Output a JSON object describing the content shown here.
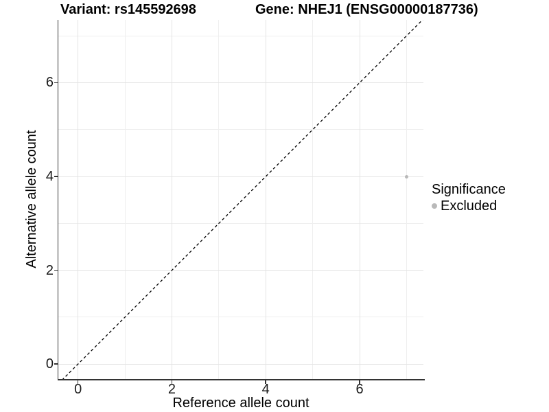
{
  "titles": {
    "variant": "Variant: rs145592698",
    "gene": "Gene: NHEJ1 (ENSG00000187736)"
  },
  "chart_data": {
    "type": "scatter",
    "title": "Variant: rs145592698   Gene: NHEJ1 (ENSG00000187736)",
    "xlabel": "Reference allele count",
    "ylabel": "Alternative allele count",
    "xlim": [
      -0.42,
      7.36
    ],
    "ylim": [
      -0.32,
      7.34
    ],
    "x_ticks": [
      0,
      2,
      4,
      6
    ],
    "y_ticks": [
      0,
      2,
      4,
      6
    ],
    "grid": {
      "major": [
        0,
        2,
        4,
        6
      ],
      "minor": [
        1,
        3,
        5,
        7
      ],
      "major_color": "#e3e3e3",
      "minor_color": "#efefef"
    },
    "points": [
      {
        "x": 7,
        "y": 4,
        "significance": "Excluded",
        "color": "#b9b9b9",
        "size": 5
      }
    ],
    "reference_line": {
      "slope": 1,
      "intercept": 0,
      "style": "dashed",
      "color": "#000000",
      "width": 1.3,
      "dash": "4,3.5"
    },
    "legend": {
      "title": "Significance",
      "position": "right",
      "items": [
        {
          "label": "Excluded",
          "color": "#b9b9b9"
        }
      ]
    }
  },
  "colors": {
    "background": "#ffffff",
    "axis": "#333333",
    "text": "#000000",
    "point_excluded": "#b9b9b9"
  }
}
